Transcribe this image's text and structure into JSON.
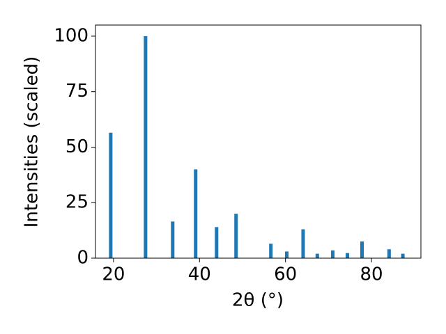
{
  "chart_data": {
    "type": "bar",
    "x": [
      19.35,
      27.45,
      33.76,
      39.1,
      43.97,
      48.5,
      56.6,
      60.3,
      64.1,
      67.4,
      71.0,
      74.4,
      77.8,
      84.1,
      87.3
    ],
    "values": [
      56.5,
      100,
      16.5,
      40,
      14,
      20,
      6.5,
      3,
      13,
      2,
      3.5,
      2.3,
      7.5,
      4,
      2
    ],
    "color": "#1f77b4",
    "xlabel": "2θ (°)",
    "ylabel": "Intensities (scaled)",
    "xlim": [
      15.8,
      91.5
    ],
    "xticks": [
      20,
      40,
      60,
      80
    ],
    "ylim": [
      0,
      105
    ],
    "yticks": [
      0,
      25,
      50,
      75,
      100
    ]
  }
}
